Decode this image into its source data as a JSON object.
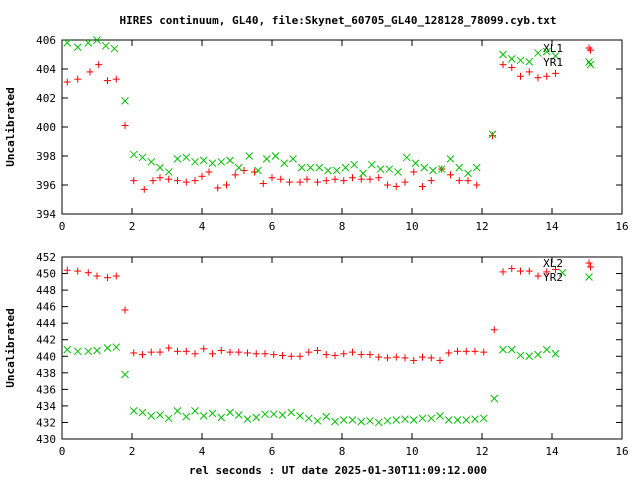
{
  "chart_data": {
    "type": "scatter",
    "title": "HIRES continuum, GL40, file:Skynet_60705_GL40_128128_78099.cyb.txt",
    "xlabel": "rel seconds : UT date 2025-01-30T11:09:12.000",
    "panels": [
      {
        "ylabel": "Uncalibrated",
        "xlim": [
          0,
          16
        ],
        "ylim": [
          394,
          406
        ],
        "xticks": [
          0,
          2,
          4,
          6,
          8,
          10,
          12,
          14,
          16
        ],
        "yticks": [
          394,
          396,
          398,
          400,
          402,
          404,
          406
        ],
        "series": [
          {
            "name": "XL1",
            "marker": "plus",
            "color": "#ff0000",
            "points": [
              [
                0.15,
                403.1
              ],
              [
                0.45,
                403.3
              ],
              [
                0.8,
                403.8
              ],
              [
                1.05,
                404.3
              ],
              [
                1.3,
                403.2
              ],
              [
                1.55,
                403.3
              ],
              [
                1.8,
                400.1
              ],
              [
                2.05,
                396.3
              ],
              [
                2.35,
                395.7
              ],
              [
                2.6,
                396.3
              ],
              [
                2.8,
                396.5
              ],
              [
                3.05,
                396.4
              ],
              [
                3.3,
                396.3
              ],
              [
                3.55,
                396.2
              ],
              [
                3.8,
                396.3
              ],
              [
                4.0,
                396.6
              ],
              [
                4.2,
                396.9
              ],
              [
                4.45,
                395.8
              ],
              [
                4.7,
                396.0
              ],
              [
                4.95,
                396.7
              ],
              [
                5.2,
                397.0
              ],
              [
                5.5,
                396.9
              ],
              [
                5.75,
                396.1
              ],
              [
                6.0,
                396.5
              ],
              [
                6.25,
                396.4
              ],
              [
                6.5,
                396.2
              ],
              [
                6.8,
                396.2
              ],
              [
                7.0,
                396.4
              ],
              [
                7.3,
                396.2
              ],
              [
                7.55,
                396.3
              ],
              [
                7.8,
                396.4
              ],
              [
                8.05,
                396.3
              ],
              [
                8.3,
                396.5
              ],
              [
                8.55,
                396.4
              ],
              [
                8.8,
                396.4
              ],
              [
                9.05,
                396.5
              ],
              [
                9.3,
                396.0
              ],
              [
                9.55,
                395.9
              ],
              [
                9.8,
                396.2
              ],
              [
                10.05,
                396.9
              ],
              [
                10.3,
                395.9
              ],
              [
                10.55,
                396.3
              ],
              [
                10.85,
                397.1
              ],
              [
                11.1,
                396.7
              ],
              [
                11.35,
                396.3
              ],
              [
                11.6,
                396.3
              ],
              [
                11.85,
                396.0
              ],
              [
                12.3,
                399.4
              ],
              [
                12.6,
                404.3
              ],
              [
                12.85,
                404.1
              ],
              [
                13.1,
                403.5
              ],
              [
                13.35,
                403.8
              ],
              [
                13.6,
                403.4
              ],
              [
                13.85,
                403.5
              ],
              [
                14.1,
                403.7
              ],
              [
                15.1,
                405.3
              ]
            ]
          },
          {
            "name": "YR1",
            "marker": "cross",
            "color": "#00c000",
            "points": [
              [
                0.15,
                405.8
              ],
              [
                0.45,
                405.5
              ],
              [
                0.75,
                405.8
              ],
              [
                1.0,
                406.0
              ],
              [
                1.25,
                405.6
              ],
              [
                1.5,
                405.4
              ],
              [
                1.8,
                401.8
              ],
              [
                2.05,
                398.1
              ],
              [
                2.3,
                397.9
              ],
              [
                2.55,
                397.6
              ],
              [
                2.8,
                397.2
              ],
              [
                3.05,
                396.9
              ],
              [
                3.3,
                397.8
              ],
              [
                3.55,
                397.9
              ],
              [
                3.8,
                397.6
              ],
              [
                4.05,
                397.7
              ],
              [
                4.3,
                397.5
              ],
              [
                4.55,
                397.6
              ],
              [
                4.8,
                397.7
              ],
              [
                5.05,
                397.2
              ],
              [
                5.35,
                398.0
              ],
              [
                5.6,
                397.0
              ],
              [
                5.85,
                397.8
              ],
              [
                6.1,
                398.0
              ],
              [
                6.35,
                397.5
              ],
              [
                6.6,
                397.8
              ],
              [
                6.85,
                397.2
              ],
              [
                7.1,
                397.2
              ],
              [
                7.35,
                397.2
              ],
              [
                7.6,
                397.0
              ],
              [
                7.85,
                397.0
              ],
              [
                8.1,
                397.2
              ],
              [
                8.35,
                397.4
              ],
              [
                8.6,
                396.8
              ],
              [
                8.85,
                397.4
              ],
              [
                9.1,
                397.1
              ],
              [
                9.35,
                397.1
              ],
              [
                9.6,
                396.9
              ],
              [
                9.85,
                397.9
              ],
              [
                10.1,
                397.5
              ],
              [
                10.35,
                397.2
              ],
              [
                10.6,
                397.0
              ],
              [
                10.85,
                397.1
              ],
              [
                11.1,
                397.8
              ],
              [
                11.35,
                397.2
              ],
              [
                11.6,
                396.8
              ],
              [
                11.85,
                397.2
              ],
              [
                12.3,
                399.5
              ],
              [
                12.6,
                405.0
              ],
              [
                12.85,
                404.7
              ],
              [
                13.1,
                404.6
              ],
              [
                13.35,
                404.5
              ],
              [
                13.6,
                405.1
              ],
              [
                13.85,
                405.2
              ],
              [
                14.1,
                404.9
              ],
              [
                15.1,
                404.3
              ]
            ]
          }
        ]
      },
      {
        "ylabel": "Uncalibrated",
        "xlim": [
          0,
          16
        ],
        "ylim": [
          430,
          452
        ],
        "xticks": [
          0,
          2,
          4,
          6,
          8,
          10,
          12,
          14,
          16
        ],
        "yticks": [
          430,
          432,
          434,
          436,
          438,
          440,
          442,
          444,
          446,
          448,
          450,
          452
        ],
        "series": [
          {
            "name": "XL2",
            "marker": "plus",
            "color": "#ff0000",
            "points": [
              [
                0.15,
                450.4
              ],
              [
                0.45,
                450.3
              ],
              [
                0.75,
                450.1
              ],
              [
                1.0,
                449.7
              ],
              [
                1.3,
                449.5
              ],
              [
                1.55,
                449.7
              ],
              [
                1.8,
                445.6
              ],
              [
                2.05,
                440.4
              ],
              [
                2.3,
                440.2
              ],
              [
                2.55,
                440.5
              ],
              [
                2.8,
                440.5
              ],
              [
                3.05,
                441.0
              ],
              [
                3.3,
                440.6
              ],
              [
                3.55,
                440.6
              ],
              [
                3.8,
                440.3
              ],
              [
                4.05,
                440.9
              ],
              [
                4.3,
                440.3
              ],
              [
                4.55,
                440.7
              ],
              [
                4.8,
                440.5
              ],
              [
                5.05,
                440.5
              ],
              [
                5.3,
                440.4
              ],
              [
                5.55,
                440.3
              ],
              [
                5.8,
                440.3
              ],
              [
                6.05,
                440.2
              ],
              [
                6.3,
                440.1
              ],
              [
                6.55,
                440.0
              ],
              [
                6.8,
                440.0
              ],
              [
                7.05,
                440.5
              ],
              [
                7.3,
                440.7
              ],
              [
                7.55,
                440.2
              ],
              [
                7.8,
                440.1
              ],
              [
                8.05,
                440.3
              ],
              [
                8.3,
                440.5
              ],
              [
                8.55,
                440.2
              ],
              [
                8.8,
                440.2
              ],
              [
                9.05,
                439.9
              ],
              [
                9.3,
                439.8
              ],
              [
                9.55,
                439.9
              ],
              [
                9.8,
                439.8
              ],
              [
                10.05,
                439.5
              ],
              [
                10.3,
                439.9
              ],
              [
                10.55,
                439.8
              ],
              [
                10.8,
                439.5
              ],
              [
                11.05,
                440.4
              ],
              [
                11.3,
                440.6
              ],
              [
                11.55,
                440.6
              ],
              [
                11.8,
                440.6
              ],
              [
                12.05,
                440.5
              ],
              [
                12.35,
                443.2
              ],
              [
                12.6,
                450.2
              ],
              [
                12.85,
                450.6
              ],
              [
                13.1,
                450.3
              ],
              [
                13.35,
                450.3
              ],
              [
                13.6,
                449.7
              ],
              [
                13.85,
                450.2
              ],
              [
                14.1,
                450.5
              ],
              [
                15.1,
                450.8
              ]
            ]
          },
          {
            "name": "YR2",
            "marker": "cross",
            "color": "#00c000",
            "points": [
              [
                0.15,
                440.8
              ],
              [
                0.45,
                440.6
              ],
              [
                0.75,
                440.6
              ],
              [
                1.0,
                440.7
              ],
              [
                1.3,
                441.0
              ],
              [
                1.55,
                441.1
              ],
              [
                1.8,
                437.8
              ],
              [
                2.05,
                433.4
              ],
              [
                2.3,
                433.2
              ],
              [
                2.55,
                432.8
              ],
              [
                2.8,
                432.9
              ],
              [
                3.05,
                432.5
              ],
              [
                3.3,
                433.4
              ],
              [
                3.55,
                432.7
              ],
              [
                3.8,
                433.4
              ],
              [
                4.05,
                432.8
              ],
              [
                4.3,
                433.1
              ],
              [
                4.55,
                432.6
              ],
              [
                4.8,
                433.2
              ],
              [
                5.05,
                432.9
              ],
              [
                5.3,
                432.4
              ],
              [
                5.55,
                432.6
              ],
              [
                5.8,
                433.0
              ],
              [
                6.05,
                433.0
              ],
              [
                6.3,
                432.9
              ],
              [
                6.55,
                433.2
              ],
              [
                6.8,
                432.8
              ],
              [
                7.05,
                432.5
              ],
              [
                7.3,
                432.2
              ],
              [
                7.55,
                432.7
              ],
              [
                7.8,
                432.1
              ],
              [
                8.05,
                432.3
              ],
              [
                8.3,
                432.3
              ],
              [
                8.55,
                432.1
              ],
              [
                8.8,
                432.2
              ],
              [
                9.05,
                432.0
              ],
              [
                9.3,
                432.2
              ],
              [
                9.55,
                432.3
              ],
              [
                9.8,
                432.4
              ],
              [
                10.05,
                432.3
              ],
              [
                10.3,
                432.5
              ],
              [
                10.55,
                432.5
              ],
              [
                10.8,
                432.8
              ],
              [
                11.05,
                432.3
              ],
              [
                11.3,
                432.3
              ],
              [
                11.55,
                432.3
              ],
              [
                11.8,
                432.4
              ],
              [
                12.05,
                432.5
              ],
              [
                12.35,
                434.9
              ],
              [
                12.6,
                440.8
              ],
              [
                12.85,
                440.8
              ],
              [
                13.1,
                440.1
              ],
              [
                13.35,
                440.0
              ],
              [
                13.6,
                440.2
              ],
              [
                13.85,
                440.8
              ],
              [
                14.1,
                440.3
              ],
              [
                14.3,
                450.1
              ]
            ]
          }
        ]
      }
    ]
  }
}
